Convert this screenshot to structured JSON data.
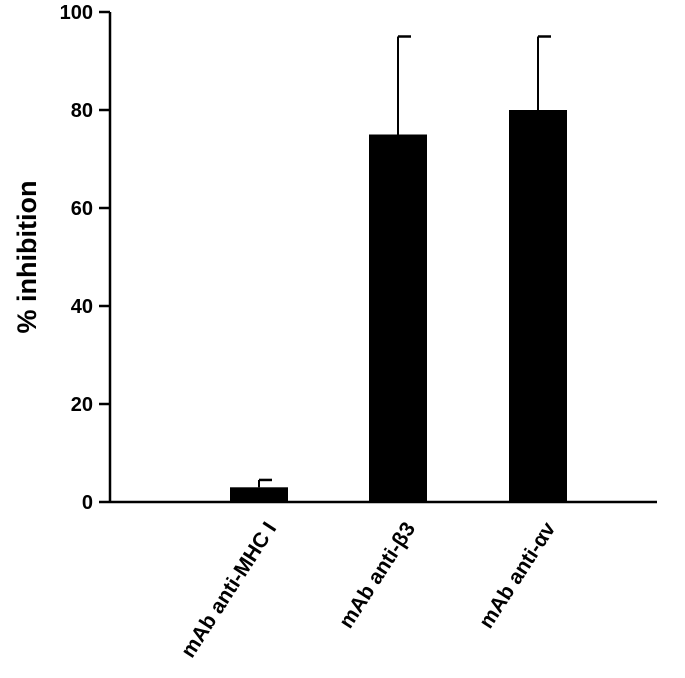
{
  "chart_data": {
    "type": "bar",
    "title": "",
    "xlabel": "",
    "ylabel": "% inhibition",
    "ylim": [
      0,
      100
    ],
    "yticks": [
      0,
      20,
      40,
      60,
      80,
      100
    ],
    "grid": false,
    "legend": "none",
    "bar_color": "#000000",
    "categories": [
      "mAb anti-MHC I",
      "mAb anti-β3",
      "mAb anti-αv"
    ],
    "values": [
      3,
      75,
      80
    ],
    "error_upper": [
      4.5,
      95,
      95
    ]
  }
}
